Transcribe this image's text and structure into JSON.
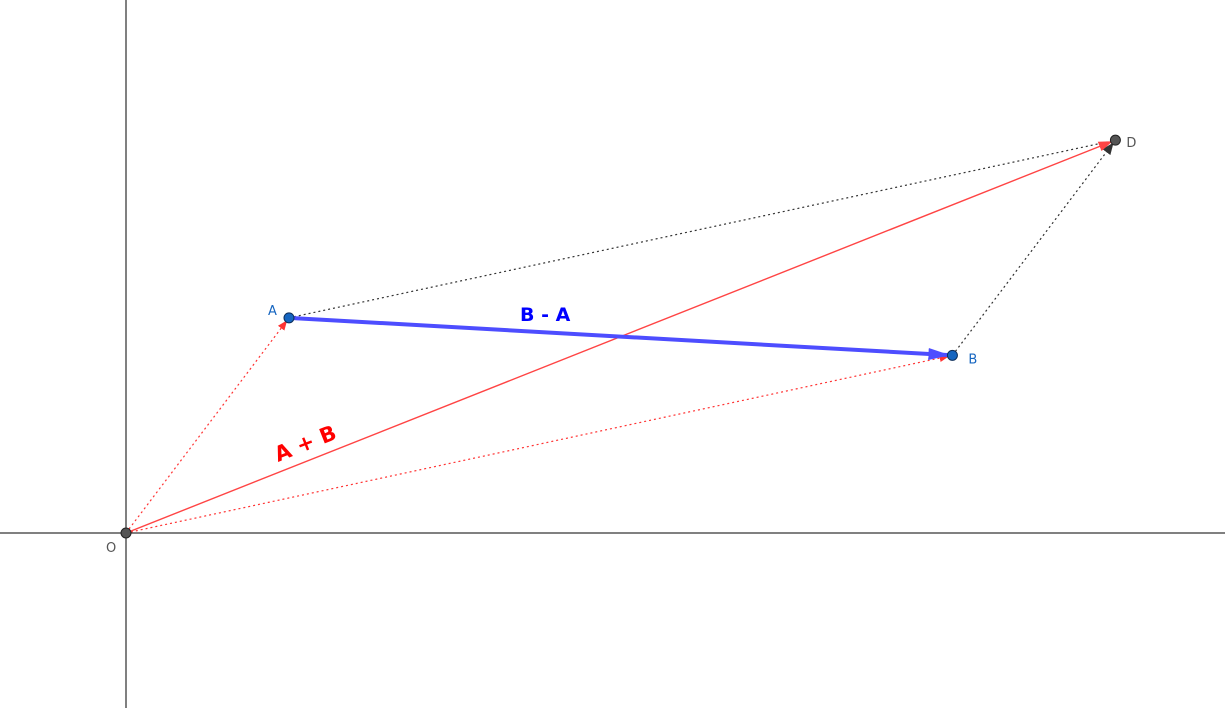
{
  "diagram": {
    "type": "vector-parallelogram",
    "points": {
      "O": {
        "label": "O",
        "x": 0,
        "y": 0,
        "color": "#555555"
      },
      "A": {
        "label": "A",
        "x": 1.0,
        "y": 1.32,
        "color": "#1565c0"
      },
      "B": {
        "label": "B",
        "x": 5.07,
        "y": 1.09,
        "color": "#1565c0"
      },
      "D": {
        "label": "D",
        "x": 6.07,
        "y": 2.41,
        "color": "#555555"
      }
    },
    "vectors": {
      "sum": {
        "label": "A + B",
        "from": "O",
        "to": "D",
        "color": "#ff0000"
      },
      "difference": {
        "label": "B - A",
        "from": "A",
        "to": "B",
        "color": "#0000ff"
      }
    },
    "colors": {
      "axis": "#000000",
      "dotted_gray": "#333333",
      "dotted_red": "#ff3333",
      "sum_vector": "#ff4444",
      "diff_vector": "#4d4dff",
      "point_blue": "#1565c0",
      "point_gray": "#555555"
    }
  }
}
